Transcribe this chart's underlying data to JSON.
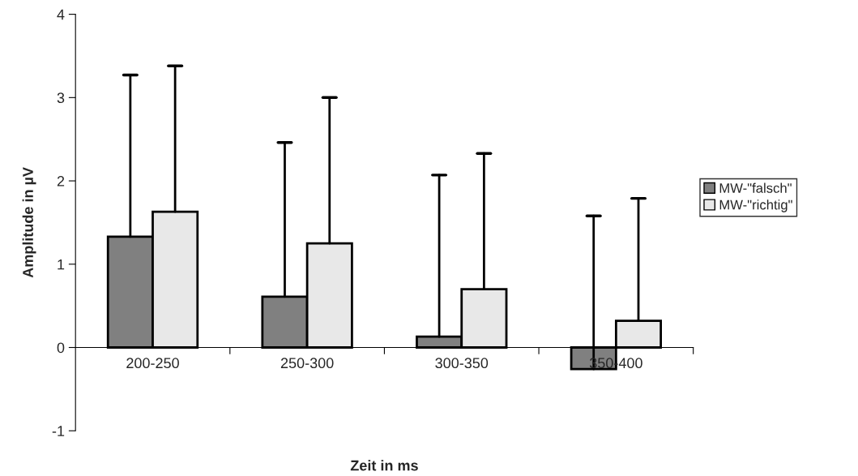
{
  "chart_data": {
    "type": "bar",
    "xlabel": "Zeit in ms",
    "ylabel": "Amplitude in µV",
    "categories": [
      "200-250",
      "250-300",
      "300-350",
      "350-400"
    ],
    "series": [
      {
        "name": "MW-\"falsch\"",
        "color": "#808080",
        "values": [
          1.33,
          0.61,
          0.13,
          -0.26
        ],
        "errors": [
          [
            1.33,
            3.27
          ],
          [
            0.61,
            2.46
          ],
          [
            0.13,
            2.07
          ],
          [
            -0.26,
            1.58
          ]
        ]
      },
      {
        "name": "MW-\"richtig\"",
        "color": "#e8e8e8",
        "values": [
          1.63,
          1.25,
          0.7,
          0.32
        ],
        "errors": [
          [
            1.63,
            3.38
          ],
          [
            1.25,
            3.0
          ],
          [
            0.7,
            2.33
          ],
          [
            0.32,
            1.79
          ]
        ]
      }
    ],
    "ylim": [
      -1,
      4
    ],
    "yticks": [
      -1,
      0,
      1,
      2,
      3,
      4
    ],
    "grid": false,
    "legend": "right"
  }
}
